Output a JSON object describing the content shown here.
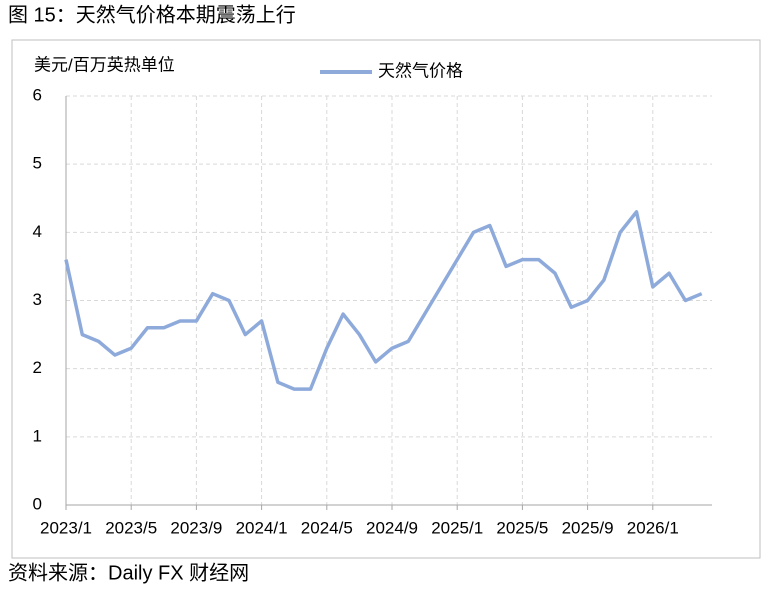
{
  "chart_data": {
    "type": "line",
    "title": "图 15：天然气价格本期震荡上行",
    "y_label": "美元/百万英热单位",
    "source": "资料来源：Daily FX 财经网",
    "x": [
      "2023/1",
      "2023/2",
      "2023/3",
      "2023/4",
      "2023/5",
      "2023/6",
      "2023/7",
      "2023/8",
      "2023/9",
      "2023/10",
      "2023/11",
      "2023/12",
      "2024/1",
      "2024/2",
      "2024/3",
      "2024/4",
      "2024/5",
      "2024/6",
      "2024/7",
      "2024/8",
      "2024/9",
      "2024/10",
      "2024/11",
      "2024/12",
      "2025/1",
      "2025/2",
      "2025/3",
      "2025/4",
      "2025/5",
      "2025/6",
      "2025/7",
      "2025/8",
      "2025/9",
      "2025/10",
      "2025/11",
      "2025/12",
      "2026/1",
      "2026/2",
      "2026/3",
      "2026/4"
    ],
    "xticks": [
      "2023/1",
      "2023/5",
      "2023/9",
      "2024/1",
      "2024/5",
      "2024/9",
      "2025/1",
      "2025/5",
      "2025/9",
      "2026/1"
    ],
    "series": [
      {
        "name": "天然气价格",
        "color": "#8eaadb",
        "values": [
          3.6,
          2.5,
          2.4,
          2.2,
          2.3,
          2.6,
          2.6,
          2.7,
          2.7,
          3.1,
          3.0,
          2.5,
          2.7,
          1.8,
          1.7,
          1.7,
          2.3,
          2.8,
          2.5,
          2.1,
          2.3,
          2.4,
          2.8,
          3.2,
          3.6,
          4.0,
          4.1,
          3.5,
          3.6,
          3.6,
          3.4,
          2.9,
          3.0,
          3.3,
          4.0,
          4.3,
          3.2,
          3.4,
          3.0,
          3.1
        ]
      }
    ],
    "ylim": [
      0,
      6
    ],
    "yticks": [
      0,
      1,
      2,
      3,
      4,
      5,
      6
    ],
    "grid": true,
    "legend": "top"
  }
}
